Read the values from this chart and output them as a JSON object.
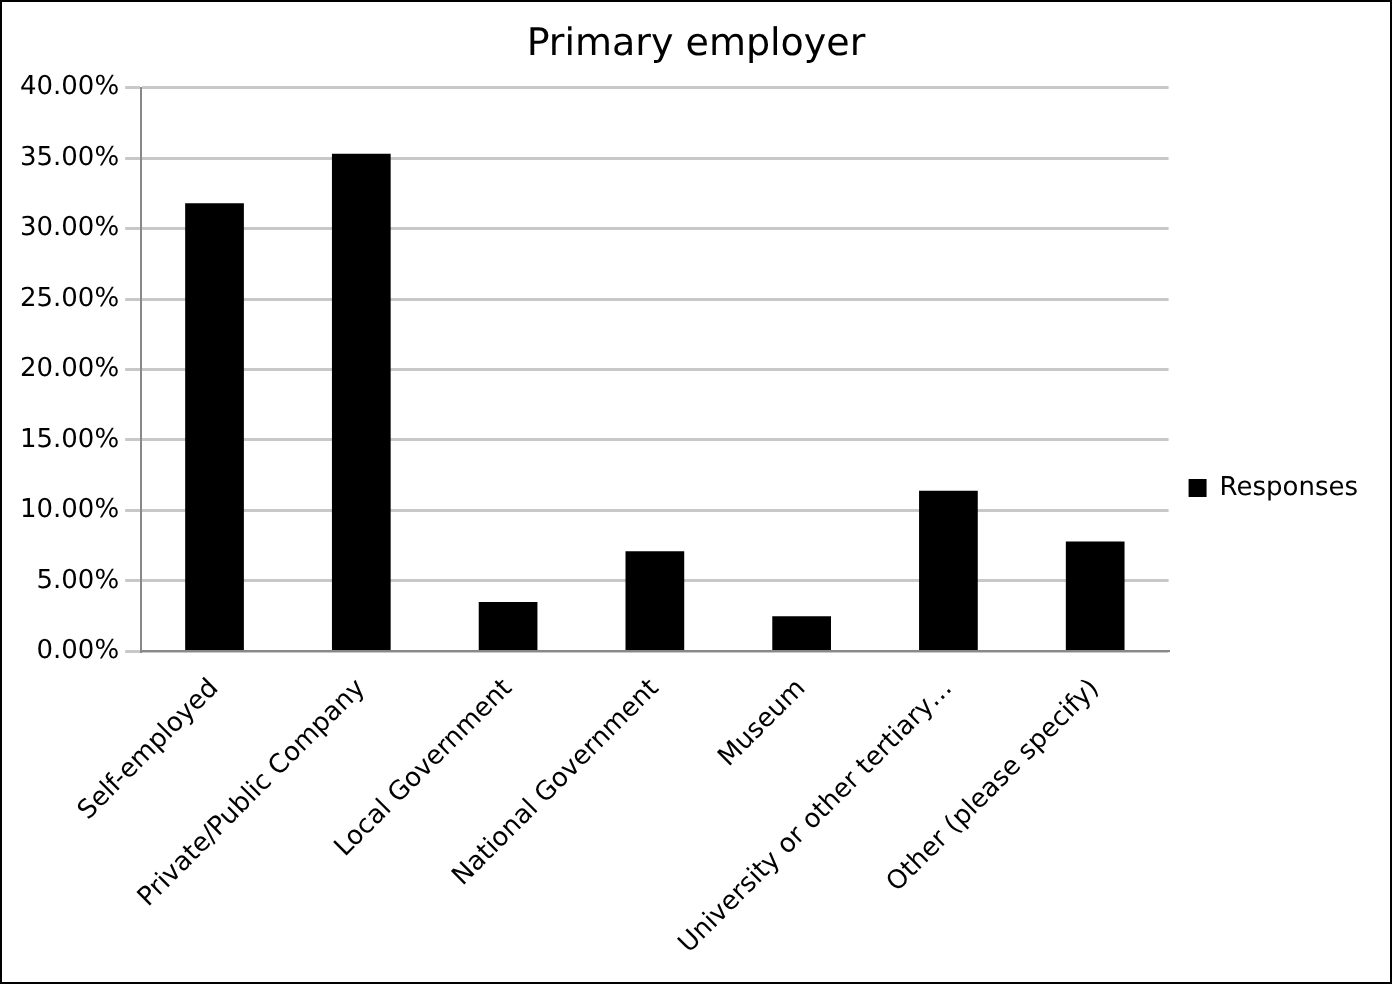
{
  "chart_data": {
    "type": "bar",
    "title": "Primary employer",
    "categories": [
      "Self-employed",
      "Private/Public Company",
      "Local Government",
      "National Government",
      "Museum",
      "University or other tertiary…",
      "Other (please specify)"
    ],
    "series": [
      {
        "name": "Responses",
        "color": "#000000",
        "values": [
          31.8,
          35.3,
          3.5,
          7.1,
          2.5,
          11.4,
          7.8
        ]
      }
    ],
    "ylim": [
      0,
      40
    ],
    "yticks": [
      {
        "value": 0,
        "label": "0.00%"
      },
      {
        "value": 5,
        "label": "5.00%"
      },
      {
        "value": 10,
        "label": "10.00%"
      },
      {
        "value": 15,
        "label": "15.00%"
      },
      {
        "value": 20,
        "label": "20.00%"
      },
      {
        "value": 25,
        "label": "25.00%"
      },
      {
        "value": 30,
        "label": "30.00%"
      },
      {
        "value": 35,
        "label": "35.00%"
      },
      {
        "value": 40,
        "label": "40.00%"
      }
    ],
    "grid": "y",
    "legend": "right"
  }
}
